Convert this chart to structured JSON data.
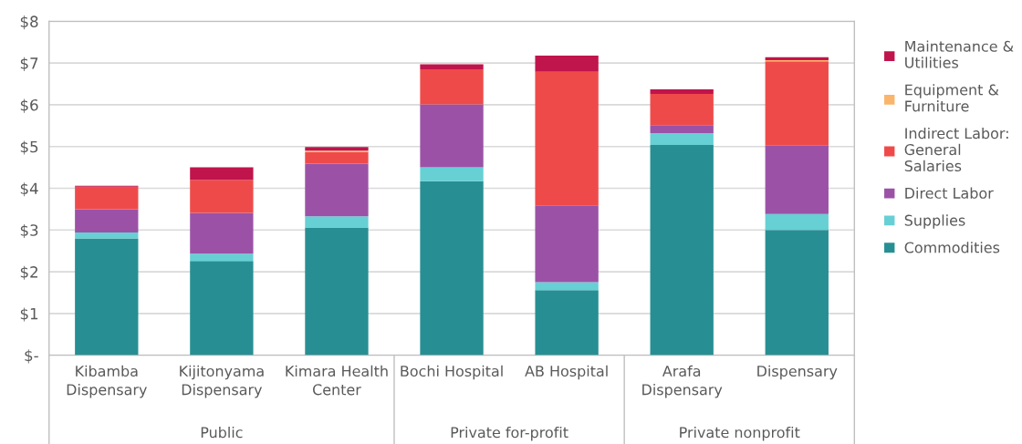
{
  "chart_data": {
    "type": "bar",
    "stacked": true,
    "categories": [
      "Kibamba Dispensary",
      "Kijitonyama Dispensary",
      "Kimara Health Center",
      "Bochi Hospital",
      "AB Hospital",
      "Arafa Dispensary",
      "Dispensary"
    ],
    "series": [
      {
        "name": "Commodities",
        "color": "#278f93",
        "values": [
          2.8,
          2.26,
          3.06,
          4.17,
          1.56,
          5.04,
          3.0
        ]
      },
      {
        "name": "Supplies",
        "color": "#66d0d4",
        "values": [
          0.14,
          0.17,
          0.27,
          0.33,
          0.19,
          0.28,
          0.38
        ]
      },
      {
        "name": "Direct Labor",
        "color": "#9b52a6",
        "values": [
          0.56,
          0.98,
          1.26,
          1.51,
          1.84,
          0.19,
          1.65
        ]
      },
      {
        "name": "Indirect Labor: General Salaries",
        "color": "#ef4a4a",
        "values": [
          0.54,
          0.79,
          0.28,
          0.84,
          3.2,
          0.75,
          2.01
        ]
      },
      {
        "name": "Equipment & Furniture",
        "color": "#f9b56b",
        "values": [
          0,
          0,
          0.03,
          0,
          0,
          0,
          0.03
        ]
      },
      {
        "name": "Maintenance & Utilities",
        "color": "#c0144c",
        "values": [
          0.02,
          0.3,
          0.09,
          0.12,
          0.39,
          0.11,
          0.07
        ]
      }
    ],
    "ylim": [
      0,
      8
    ],
    "yticks": [
      {
        "value": 0,
        "label": "$-"
      },
      {
        "value": 1,
        "label": "$1"
      },
      {
        "value": 2,
        "label": "$2"
      },
      {
        "value": 3,
        "label": "$3"
      },
      {
        "value": 4,
        "label": "$4"
      },
      {
        "value": 5,
        "label": "$5"
      },
      {
        "value": 6,
        "label": "$6"
      },
      {
        "value": 7,
        "label": "$7"
      },
      {
        "value": 8,
        "label": "$8"
      }
    ],
    "grid": "y",
    "legend": "right",
    "annotations": [
      "Public",
      "Private for-profit",
      "Private nonprofit"
    ]
  }
}
